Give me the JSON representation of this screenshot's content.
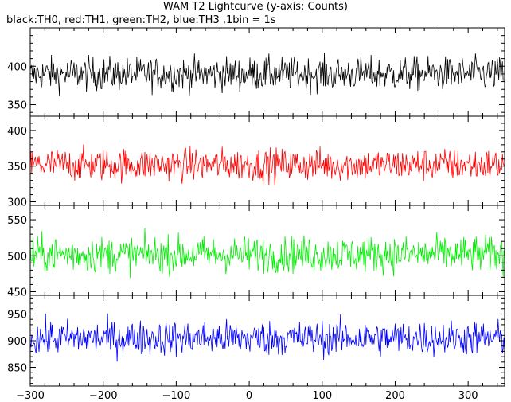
{
  "chart_data": {
    "type": "line",
    "title": "WAM T2 Lightcurve (y-axis: Counts)",
    "subtitle": "black:TH0, red:TH1, green:TH2, blue:TH3 ,1bin = 1s",
    "xlim": [
      -300,
      350
    ],
    "x_ticks": [
      -300,
      -200,
      -100,
      0,
      100,
      200,
      300
    ],
    "x_tick_labels": [
      "−300",
      "−200",
      "−100",
      "0",
      "100",
      "200",
      "300"
    ],
    "grid": false,
    "panels": [
      {
        "name": "TH0",
        "color": "#000000",
        "ylim": [
          335,
          450
        ],
        "y_ticks": [
          350,
          400
        ],
        "mean": 390,
        "spread": 20
      },
      {
        "name": "TH1",
        "color": "#ff0000",
        "ylim": [
          295,
          420
        ],
        "y_ticks": [
          300,
          350,
          400
        ],
        "mean": 352,
        "spread": 21
      },
      {
        "name": "TH2",
        "color": "#00ee00",
        "ylim": [
          445,
          570
        ],
        "y_ticks": [
          450,
          500,
          550
        ],
        "mean": 502,
        "spread": 23
      },
      {
        "name": "TH3",
        "color": "#0000ff",
        "ylim": [
          815,
          985
        ],
        "y_ticks": [
          850,
          900,
          950
        ],
        "mean": 905,
        "spread": 30
      }
    ]
  }
}
